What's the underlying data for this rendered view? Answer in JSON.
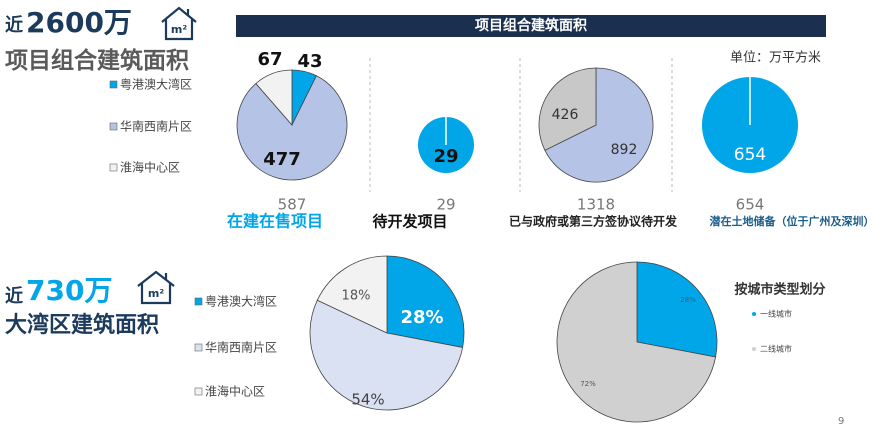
{
  "header1": {
    "lead": "近",
    "amount": "2600万",
    "icon": "m²",
    "title": "项目组合建筑面积"
  },
  "banner": "项目组合建筑面积",
  "unit": "单位：万平方米",
  "chart_data": [
    {
      "type": "pie",
      "title": "在建在售项目",
      "total": 587,
      "categories": [
        "粤港澳大湾区",
        "华南西南片区",
        "淮海中心区"
      ],
      "values": [
        43,
        477,
        67
      ],
      "colors": [
        "#00a6e8",
        "#b4c3e6",
        "#f2f2f2"
      ]
    },
    {
      "type": "pie",
      "title": "待开发项目",
      "total": 29,
      "values": [
        29
      ],
      "colors": [
        "#00a6e8"
      ]
    },
    {
      "type": "pie",
      "title": "已与政府或第三方签协议待开发",
      "total": 1318,
      "values": [
        892,
        426
      ],
      "colors": [
        "#b4c3e6",
        "#c8c8c8"
      ]
    },
    {
      "type": "pie",
      "title": "潜在土地储备（位于广州及深圳）",
      "total": 654,
      "values": [
        654
      ],
      "colors": [
        "#00a6e8"
      ]
    },
    {
      "type": "pie",
      "categories": [
        "粤港澳大湾区",
        "华南西南片区",
        "淮海中心区"
      ],
      "values": [
        28,
        54,
        18
      ],
      "value_labels": [
        "28%",
        "54%",
        "18%"
      ],
      "colors": [
        "#00a6e8",
        "#d9e1f2",
        "#f2f2f2"
      ]
    },
    {
      "type": "pie",
      "title": "按城市类型划分",
      "categories": [
        "一线城市",
        "二线城市"
      ],
      "values": [
        28,
        72
      ],
      "value_labels": [
        "28%",
        "72%"
      ],
      "colors": [
        "#00a6e8",
        "#d0d0d0"
      ]
    }
  ],
  "header2": {
    "lead": "近",
    "amount": "730万",
    "icon": "m²",
    "title": "大湾区建筑面积"
  },
  "page_number": "9"
}
